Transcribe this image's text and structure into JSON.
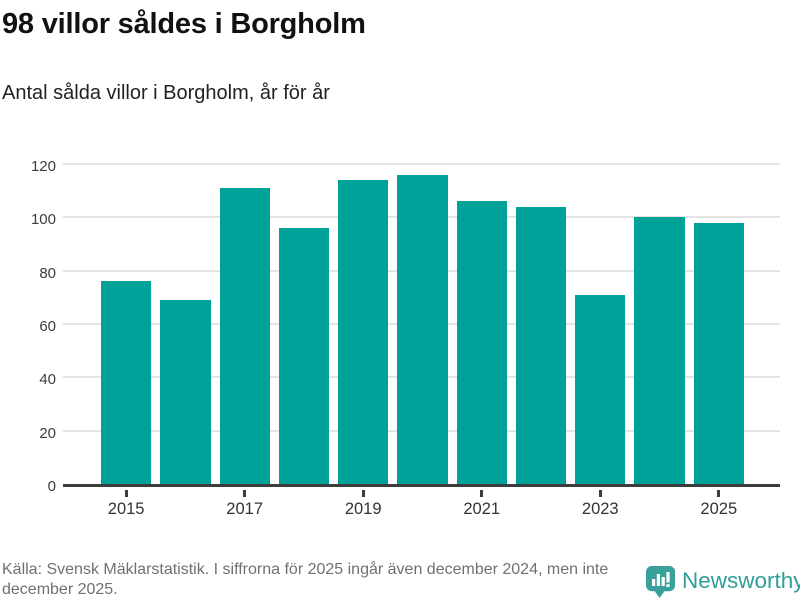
{
  "header": {
    "title": "98 villor såldes i Borgholm",
    "subtitle": "Antal sålda villor i Borgholm, år för år"
  },
  "chart_data": {
    "type": "bar",
    "categories": [
      "2015",
      "2016",
      "2017",
      "2018",
      "2019",
      "2020",
      "2021",
      "2022",
      "2023",
      "2024",
      "2025"
    ],
    "values": [
      76,
      69,
      111,
      96,
      114,
      116,
      106,
      104,
      71,
      100,
      98
    ],
    "title": "98 villor såldes i Borgholm",
    "subtitle": "Antal sålda villor i Borgholm, år för år",
    "xlabel": "",
    "ylabel": "",
    "ylim": [
      0,
      120
    ],
    "yticks": [
      0,
      20,
      40,
      60,
      80,
      100,
      120
    ],
    "xtick_labels": [
      "2015",
      "2017",
      "2019",
      "2021",
      "2023",
      "2025"
    ],
    "grid": true,
    "legend": false,
    "bar_color": "#00a199"
  },
  "footer": {
    "source": "Källa: Svensk Mäklarstatistik. I siffrorna för 2025 ingår även december 2024, men inte december 2025.",
    "brand": "Newsworthy"
  },
  "icons": {
    "brand_badge": "bar-chart-speech-bubble-icon"
  },
  "colors": {
    "bar": "#00a199",
    "axis": "#3d3d3d",
    "gridline": "#e4e4e4",
    "title_text": "#111111",
    "footer_text": "#707070",
    "brand_badge": "#3aa09a",
    "brand_word": "#2f9e99"
  }
}
